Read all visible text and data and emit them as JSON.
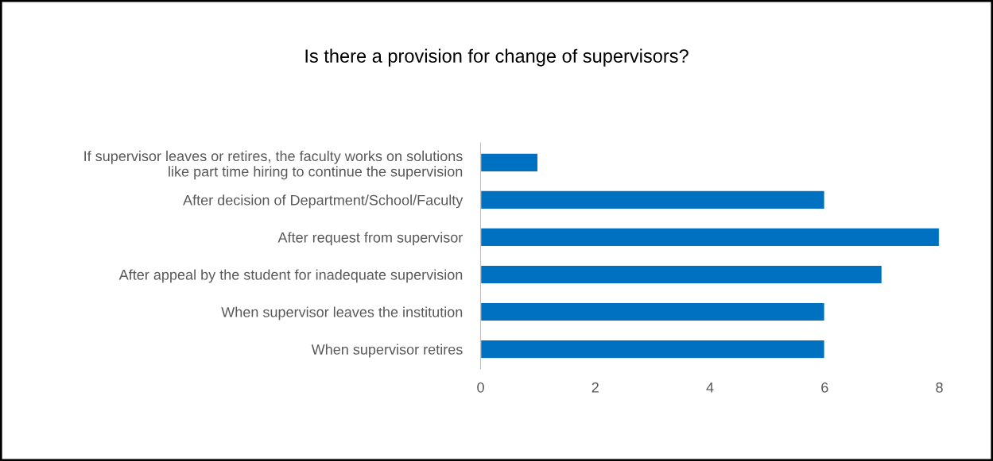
{
  "chart_data": {
    "type": "bar",
    "orientation": "horizontal",
    "title": "Is there a provision for change of supervisors?",
    "categories": [
      "If supervisor leaves or retires, the faculty works on solutions\nlike part time hiring to continue the supervision",
      "After decision of Department/School/Faculty",
      "After request from supervisor",
      "After appeal by the student for inadequate supervision",
      "When supervisor leaves the institution",
      "When supervisor retires"
    ],
    "values": [
      1,
      6,
      8,
      7,
      6,
      6
    ],
    "color": "#0070c0",
    "xlim": [
      0,
      8
    ],
    "xticks": [
      0,
      2,
      4,
      6,
      8
    ],
    "grid": false,
    "legend": false
  }
}
